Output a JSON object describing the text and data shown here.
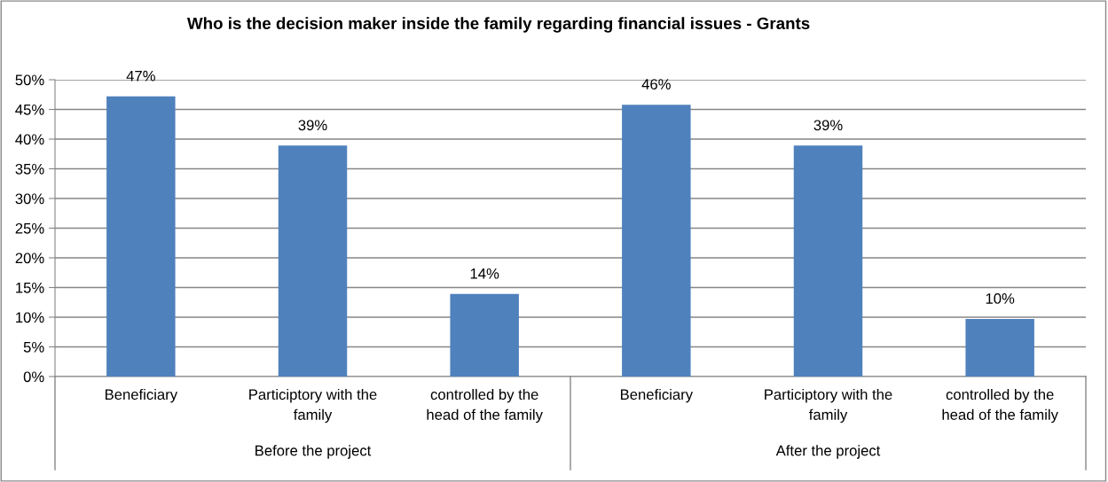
{
  "chart_data": {
    "type": "bar",
    "title": "Who is the decision maker inside the family regarding financial issues - Grants",
    "categories": [
      "Beneficiary",
      "Participtory with the\nfamily",
      "controlled by the\nhead of the family",
      "Beneficiary",
      "Participtory with the\nfamily",
      "controlled by the\nhead of the family"
    ],
    "values": [
      47.2,
      38.9,
      13.9,
      45.8,
      38.9,
      9.7
    ],
    "value_labels": [
      "47%",
      "39%",
      "14%",
      "46%",
      "39%",
      "10%"
    ],
    "color": "#4f81bd",
    "annotations": [
      "Before the project",
      "After the project"
    ],
    "ylim": [
      0,
      50
    ],
    "yticks": [
      {
        "value": 0,
        "label": "0%"
      },
      {
        "value": 5,
        "label": "5%"
      },
      {
        "value": 10,
        "label": "10%"
      },
      {
        "value": 15,
        "label": "15%"
      },
      {
        "value": 20,
        "label": "20%"
      },
      {
        "value": 25,
        "label": "25%"
      },
      {
        "value": 30,
        "label": "30%"
      },
      {
        "value": 35,
        "label": "35%"
      },
      {
        "value": 40,
        "label": "40%"
      },
      {
        "value": 45,
        "label": "45%"
      },
      {
        "value": 50,
        "label": "50%"
      }
    ],
    "grid": "y",
    "legend": false
  }
}
